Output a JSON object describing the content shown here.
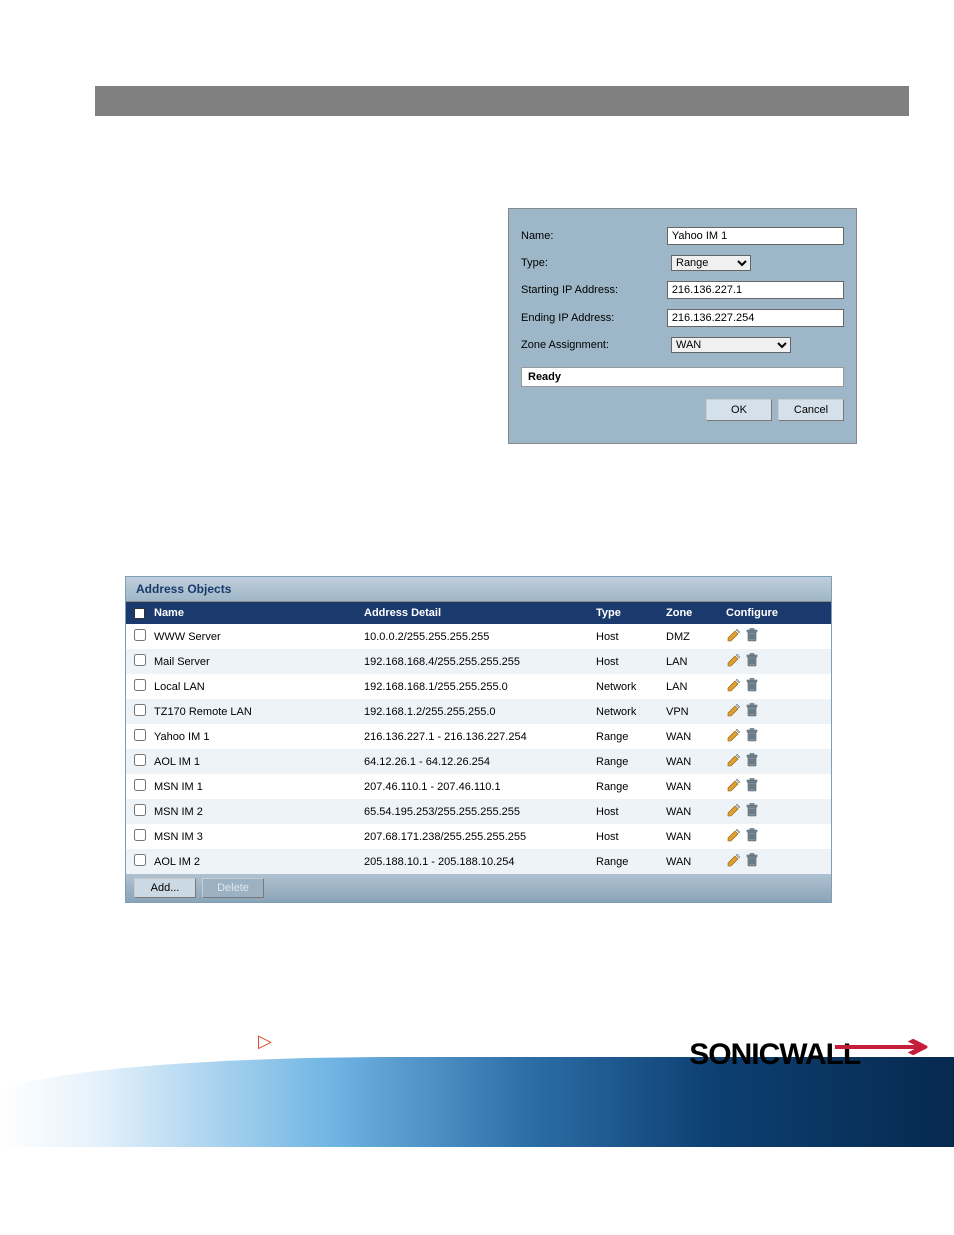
{
  "dialog": {
    "name_label": "Name:",
    "name_value": "Yahoo IM 1",
    "type_label": "Type:",
    "type_value": "Range",
    "start_label": "Starting IP Address:",
    "start_value": "216.136.227.1",
    "end_label": "Ending IP Address:",
    "end_value": "216.136.227.254",
    "zone_label": "Zone Assignment:",
    "zone_value": "WAN",
    "status": "Ready",
    "ok_label": "OK",
    "cancel_label": "Cancel"
  },
  "panel": {
    "title": "Address Objects",
    "headers": {
      "name": "Name",
      "detail": "Address Detail",
      "type": "Type",
      "zone": "Zone",
      "configure": "Configure"
    },
    "rows": [
      {
        "name": "WWW Server",
        "detail": "10.0.0.2/255.255.255.255",
        "type": "Host",
        "zone": "DMZ"
      },
      {
        "name": "Mail Server",
        "detail": "192.168.168.4/255.255.255.255",
        "type": "Host",
        "zone": "LAN"
      },
      {
        "name": "Local LAN",
        "detail": "192.168.168.1/255.255.255.0",
        "type": "Network",
        "zone": "LAN"
      },
      {
        "name": "TZ170 Remote LAN",
        "detail": "192.168.1.2/255.255.255.0",
        "type": "Network",
        "zone": "VPN"
      },
      {
        "name": "Yahoo IM 1",
        "detail": "216.136.227.1 - 216.136.227.254",
        "type": "Range",
        "zone": "WAN"
      },
      {
        "name": "AOL IM 1",
        "detail": "64.12.26.1 - 64.12.26.254",
        "type": "Range",
        "zone": "WAN"
      },
      {
        "name": "MSN IM 1",
        "detail": "207.46.110.1 - 207.46.110.1",
        "type": "Range",
        "zone": "WAN"
      },
      {
        "name": "MSN IM 2",
        "detail": "65.54.195.253/255.255.255.255",
        "type": "Host",
        "zone": "WAN"
      },
      {
        "name": "MSN IM 3",
        "detail": "207.68.171.238/255.255.255.255",
        "type": "Host",
        "zone": "WAN"
      },
      {
        "name": "AOL IM 2",
        "detail": "205.188.10.1 - 205.188.10.254",
        "type": "Range",
        "zone": "WAN"
      }
    ],
    "add_label": "Add...",
    "delete_label": "Delete"
  },
  "brand": {
    "name": "SONICWALL"
  },
  "colors": {
    "dialog_bg": "#9db7c9",
    "header_bg": "#1a3a6e",
    "row_odd": "#ffffff",
    "row_even": "#eef3f8",
    "gray_bar": "#808080"
  }
}
